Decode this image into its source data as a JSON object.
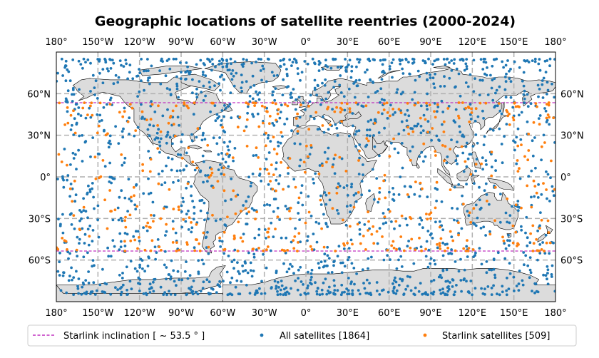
{
  "chart_data": {
    "type": "scatter",
    "title": "Geographic locations of satellite reentries (2000-2024)",
    "projection": "plate-carree",
    "xlim": [
      -180,
      180
    ],
    "ylim": [
      -90,
      90
    ],
    "grid": true,
    "x_ticks": [
      {
        "value": -180,
        "label": "180°"
      },
      {
        "value": -150,
        "label": "150°W"
      },
      {
        "value": -120,
        "label": "120°W"
      },
      {
        "value": -90,
        "label": "90°W"
      },
      {
        "value": -60,
        "label": "60°W"
      },
      {
        "value": -30,
        "label": "30°W"
      },
      {
        "value": 0,
        "label": "0°"
      },
      {
        "value": 30,
        "label": "30°E"
      },
      {
        "value": 60,
        "label": "60°E"
      },
      {
        "value": 90,
        "label": "90°E"
      },
      {
        "value": 120,
        "label": "120°E"
      },
      {
        "value": 150,
        "label": "150°E"
      },
      {
        "value": 180,
        "label": "180°"
      }
    ],
    "y_ticks": [
      {
        "value": 60,
        "label": "60°N"
      },
      {
        "value": 30,
        "label": "30°N"
      },
      {
        "value": 0,
        "label": "0°"
      },
      {
        "value": -30,
        "label": "30°S"
      },
      {
        "value": -60,
        "label": "60°S"
      }
    ],
    "inclination_deg": 53.5,
    "legend": {
      "placement": "bottom",
      "entries": [
        {
          "label": "Starlink inclination [$\\sim53.5^\\circ$]",
          "display": "Starlink inclination [ ~ 53.5 ° ]",
          "color": "#c030c0",
          "kind": "dashed-line"
        },
        {
          "label": "All satellites [1864]",
          "color": "#1f77b4",
          "kind": "point"
        },
        {
          "label": "Starlink satellites [509]",
          "color": "#ff7f0e",
          "kind": "point"
        }
      ]
    },
    "series": [
      {
        "name": "All satellites [1864]",
        "count": 1864,
        "color": "#1f77b4",
        "lat_range": [
          -85,
          85
        ],
        "seed": 1864
      },
      {
        "name": "Starlink satellites [509]",
        "count": 509,
        "color": "#ff7f0e",
        "lat_range": [
          -53.5,
          53.5
        ],
        "seed": 509
      }
    ],
    "colors": {
      "land": "#dcdcdc",
      "coast": "#000000",
      "grid": "#b0b0b0",
      "ocean": "#ffffff"
    }
  }
}
